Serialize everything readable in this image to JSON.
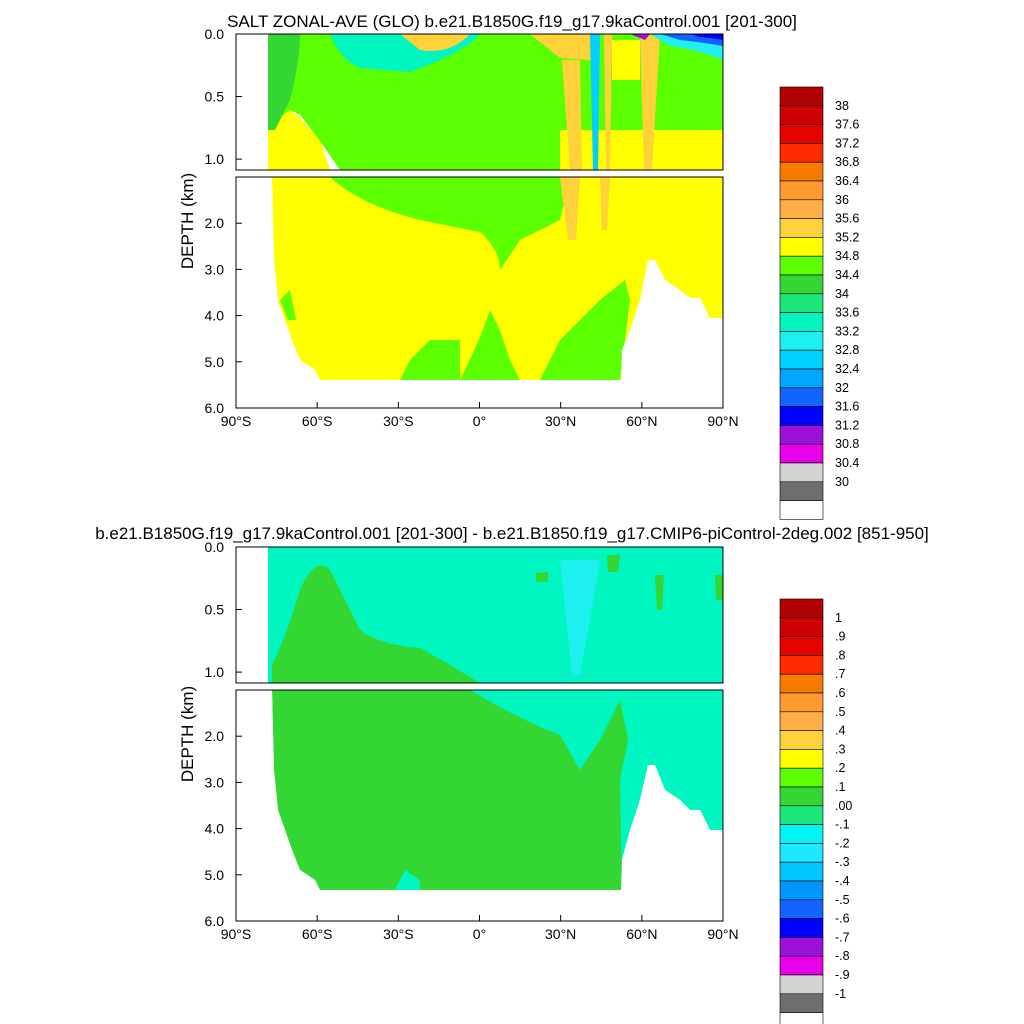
{
  "panels": [
    {
      "title": "SALT ZONAL-AVE (GLO) b.e21.B1850G.f19_g17.9kaControl.001 [201-300]",
      "ylabel": "DEPTH (km)",
      "xticks": [
        "90°S",
        "60°S",
        "30°S",
        "0°",
        "30°N",
        "60°N",
        "90°N"
      ],
      "yticks_upper": [
        "0.0",
        "0.5",
        "1.0"
      ],
      "yticks_lower": [
        "2.0",
        "3.0",
        "4.0",
        "5.0",
        "6.0"
      ],
      "colorbar": {
        "labels": [
          "38",
          "37.6",
          "37.2",
          "36.8",
          "36.4",
          "36",
          "35.6",
          "35.2",
          "34.8",
          "34.4",
          "34",
          "33.6",
          "33.2",
          "32.8",
          "32.4",
          "32",
          "31.6",
          "31.2",
          "30.8",
          "30.4",
          "30"
        ],
        "colors": [
          "#b30000",
          "#cc0000",
          "#e60000",
          "#ff2a00",
          "#f47a00",
          "#ff9a30",
          "#ffae45",
          "#ffd23c",
          "#ffff00",
          "#5bff00",
          "#33d633",
          "#1ae87c",
          "#00f5c0",
          "#1ef0f0",
          "#00d0ff",
          "#00a6ff",
          "#1463ff",
          "#0000ff",
          "#9b11d8",
          "#e800e8",
          "#d3d3d3",
          "#6e6e6e",
          "#ffffff"
        ]
      }
    },
    {
      "title": "b.e21.B1850G.f19_g17.9kaControl.001 [201-300] - b.e21.B1850.f19_g17.CMIP6-piControl-2deg.002 [851-950]",
      "ylabel": "DEPTH (km)",
      "xticks": [
        "90°S",
        "60°S",
        "30°S",
        "0°",
        "30°N",
        "60°N",
        "90°N"
      ],
      "yticks_upper": [
        "0.0",
        "0.5",
        "1.0"
      ],
      "yticks_lower": [
        "2.0",
        "3.0",
        "4.0",
        "5.0",
        "6.0"
      ],
      "colorbar": {
        "labels": [
          "1",
          ".9",
          ".8",
          ".7",
          ".6",
          ".5",
          ".4",
          ".3",
          ".2",
          ".1",
          ".00",
          "-.1",
          "-.2",
          "-.3",
          "-.4",
          "-.5",
          "-.6",
          "-.7",
          "-.8",
          "-.9",
          "-1"
        ],
        "colors": [
          "#b30000",
          "#cc0000",
          "#e60000",
          "#ff2a00",
          "#f47a00",
          "#ff9a30",
          "#ffae45",
          "#ffd23c",
          "#ffff00",
          "#5bff00",
          "#33d633",
          "#1ae87c",
          "#00f5f5",
          "#1ee8ff",
          "#00c8ff",
          "#0096ff",
          "#1463ff",
          "#0000ff",
          "#9b11d8",
          "#e800e8",
          "#d3d3d3",
          "#6e6e6e",
          "#ffffff"
        ]
      }
    }
  ],
  "chart_data": [
    {
      "type": "heatmap",
      "title": "SALT ZONAL-AVE (GLO) b.e21.B1850G.f19_g17.9kaControl.001 [201-300]",
      "xlabel": "",
      "ylabel": "DEPTH (km)",
      "xlim": [
        -90,
        90
      ],
      "ylim": [
        6.0,
        0.0
      ],
      "fields": [
        {
          "region": "upper ocean 0-1 km, 70S-40S",
          "value_range": [
            34.4,
            34.8
          ]
        },
        {
          "region": "deep ocean below 2 km",
          "value_range": [
            34.8,
            35.2
          ]
        },
        {
          "region": "subtropical N Atlantic column near 35N",
          "value_range": [
            35.2,
            35.6
          ]
        },
        {
          "region": "Arctic surface 60N-90N",
          "value_range": [
            30.0,
            33.6
          ]
        },
        {
          "region": "Southern Ocean surface",
          "value_range": [
            34.0,
            34.4
          ]
        }
      ]
    },
    {
      "type": "heatmap",
      "title": "b.e21.B1850G.f19_g17.9kaControl.001 [201-300] - b.e21.B1850.f19_g17.CMIP6-piControl-2deg.002 [851-950]",
      "xlabel": "",
      "ylabel": "DEPTH (km)",
      "xlim": [
        -90,
        90
      ],
      "ylim": [
        6.0,
        0.0
      ],
      "fields": [
        {
          "region": "upper ocean 0-1 km",
          "value_range": [
            -0.1,
            0.0
          ]
        },
        {
          "region": "southern deep ocean below 1 km",
          "value_range": [
            0.0,
            0.1
          ]
        },
        {
          "region": "northern deep ocean 0N-90N",
          "value_range": [
            -0.1,
            0.0
          ]
        },
        {
          "region": "column near 40N",
          "value_range": [
            -0.2,
            -0.1
          ]
        }
      ]
    }
  ]
}
